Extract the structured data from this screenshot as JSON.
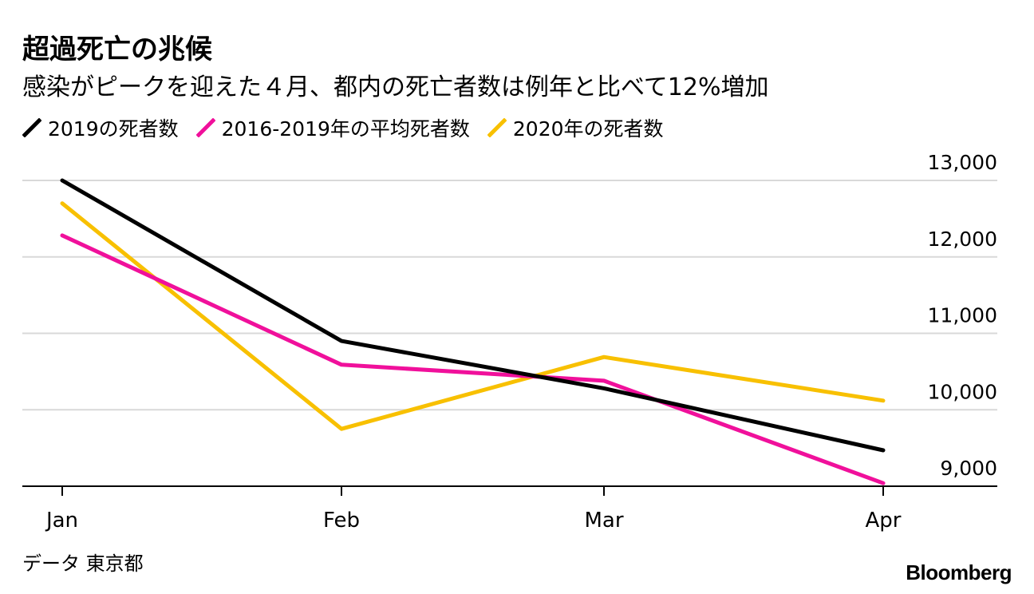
{
  "chart_data": {
    "type": "line",
    "title": "超過死亡の兆候",
    "subtitle": "感染がピークを迎えた４月、都内の死亡者数は例年と比べて12%増加",
    "categories": [
      "Jan",
      "Feb",
      "Mar",
      "Apr"
    ],
    "series": [
      {
        "name": "2019の死者数",
        "color": "#000000",
        "values": [
          13000,
          10900,
          10280,
          9470
        ]
      },
      {
        "name": "2016-2019年の平均死者数",
        "color": "#f0109b",
        "values": [
          12280,
          10590,
          10380,
          9040
        ]
      },
      {
        "name": "2020年の死者数",
        "color": "#f8c000",
        "values": [
          12700,
          9750,
          10690,
          10120
        ]
      }
    ],
    "yticks": [
      9000,
      10000,
      11000,
      12000,
      13000
    ],
    "ytick_labels": [
      "9,000",
      "10,000",
      "11,000",
      "12,000",
      "13,000"
    ],
    "ylim": [
      9000,
      13000
    ],
    "y_axis_position": "right",
    "grid": true,
    "legend_position": "top-left"
  },
  "footer": {
    "source": "データ 東京都",
    "brand": "Bloomberg"
  }
}
